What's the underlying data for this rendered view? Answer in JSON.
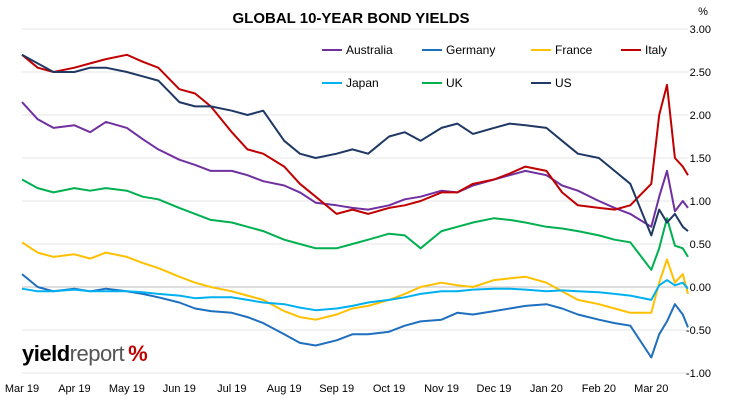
{
  "chart_data": {
    "type": "line",
    "title": "GLOBAL 10-YEAR BOND YIELDS",
    "ylabel": "%",
    "ylim": [
      -1.0,
      3.0
    ],
    "yticks": [
      "3.00",
      "2.50",
      "2.00",
      "1.50",
      "1.00",
      "0.50",
      "0.00",
      "-0.50",
      "-1.00"
    ],
    "xticks": [
      "Mar 19",
      "Apr 19",
      "May 19",
      "Jun 19",
      "Jul 19",
      "Aug 19",
      "Sep 19",
      "Oct 19",
      "Nov 19",
      "Dec 19",
      "Jan 20",
      "Feb 20",
      "Mar 20"
    ],
    "x_range": [
      0,
      12.7
    ],
    "grid": true,
    "legend": "top",
    "series": [
      {
        "name": "Australia",
        "color": "#7030a0",
        "x": [
          0,
          0.3,
          0.6,
          1,
          1.3,
          1.6,
          2,
          2.3,
          2.6,
          3,
          3.3,
          3.6,
          4,
          4.3,
          4.6,
          5,
          5.3,
          5.6,
          6,
          6.3,
          6.6,
          7,
          7.3,
          7.6,
          8,
          8.3,
          8.6,
          9,
          9.3,
          9.6,
          10,
          10.3,
          10.6,
          11,
          11.3,
          11.6,
          12,
          12.15,
          12.3,
          12.45,
          12.6,
          12.7
        ],
        "values": [
          2.15,
          1.95,
          1.85,
          1.88,
          1.8,
          1.92,
          1.85,
          1.72,
          1.6,
          1.48,
          1.42,
          1.35,
          1.35,
          1.3,
          1.23,
          1.18,
          1.1,
          0.98,
          0.95,
          0.92,
          0.9,
          0.95,
          1.02,
          1.05,
          1.12,
          1.1,
          1.18,
          1.25,
          1.3,
          1.35,
          1.3,
          1.18,
          1.12,
          1.0,
          0.92,
          0.85,
          0.7,
          1.05,
          1.35,
          0.88,
          1.0,
          0.92
        ]
      },
      {
        "name": "Germany",
        "color": "#1f6fbf",
        "x": [
          0,
          0.3,
          0.6,
          1,
          1.3,
          1.6,
          2,
          2.3,
          2.6,
          3,
          3.3,
          3.6,
          4,
          4.3,
          4.6,
          5,
          5.3,
          5.6,
          6,
          6.3,
          6.6,
          7,
          7.3,
          7.6,
          8,
          8.3,
          8.6,
          9,
          9.3,
          9.6,
          10,
          10.3,
          10.6,
          11,
          11.3,
          11.6,
          12,
          12.15,
          12.3,
          12.45,
          12.6,
          12.7
        ],
        "values": [
          0.15,
          0.0,
          -0.05,
          -0.02,
          -0.05,
          -0.02,
          -0.05,
          -0.08,
          -0.12,
          -0.18,
          -0.25,
          -0.28,
          -0.3,
          -0.35,
          -0.42,
          -0.55,
          -0.65,
          -0.68,
          -0.62,
          -0.55,
          -0.55,
          -0.52,
          -0.45,
          -0.4,
          -0.38,
          -0.3,
          -0.32,
          -0.28,
          -0.25,
          -0.22,
          -0.2,
          -0.25,
          -0.32,
          -0.38,
          -0.42,
          -0.45,
          -0.82,
          -0.55,
          -0.4,
          -0.2,
          -0.32,
          -0.47
        ]
      },
      {
        "name": "France",
        "color": "#ffc000",
        "x": [
          0,
          0.3,
          0.6,
          1,
          1.3,
          1.6,
          2,
          2.3,
          2.6,
          3,
          3.3,
          3.6,
          4,
          4.3,
          4.6,
          5,
          5.3,
          5.6,
          6,
          6.3,
          6.6,
          7,
          7.3,
          7.6,
          8,
          8.3,
          8.6,
          9,
          9.3,
          9.6,
          10,
          10.3,
          10.6,
          11,
          11.3,
          11.6,
          12,
          12.15,
          12.3,
          12.45,
          12.6,
          12.7
        ],
        "values": [
          0.52,
          0.4,
          0.35,
          0.38,
          0.33,
          0.4,
          0.35,
          0.28,
          0.22,
          0.12,
          0.05,
          0.0,
          -0.05,
          -0.1,
          -0.15,
          -0.28,
          -0.35,
          -0.38,
          -0.32,
          -0.25,
          -0.22,
          -0.15,
          -0.08,
          0.0,
          0.05,
          0.02,
          0.0,
          0.08,
          0.1,
          0.12,
          0.05,
          -0.05,
          -0.15,
          -0.2,
          -0.25,
          -0.3,
          -0.3,
          0.05,
          0.32,
          0.05,
          0.15,
          -0.08
        ]
      },
      {
        "name": "Italy",
        "color": "#c00000",
        "x": [
          0,
          0.3,
          0.6,
          1,
          1.3,
          1.6,
          2,
          2.3,
          2.6,
          3,
          3.3,
          3.6,
          4,
          4.3,
          4.6,
          5,
          5.3,
          5.6,
          6,
          6.3,
          6.6,
          7,
          7.3,
          7.6,
          8,
          8.3,
          8.6,
          9,
          9.3,
          9.6,
          10,
          10.3,
          10.6,
          11,
          11.3,
          11.6,
          12,
          12.15,
          12.3,
          12.45,
          12.6,
          12.7
        ],
        "values": [
          2.7,
          2.55,
          2.5,
          2.55,
          2.6,
          2.65,
          2.7,
          2.62,
          2.55,
          2.3,
          2.25,
          2.1,
          1.8,
          1.6,
          1.55,
          1.4,
          1.2,
          1.05,
          0.85,
          0.9,
          0.85,
          0.92,
          0.95,
          1.0,
          1.1,
          1.1,
          1.2,
          1.25,
          1.32,
          1.4,
          1.35,
          1.1,
          0.95,
          0.92,
          0.9,
          0.95,
          1.2,
          2.0,
          2.35,
          1.5,
          1.4,
          1.3
        ]
      },
      {
        "name": "Japan",
        "color": "#00b0f0",
        "x": [
          0,
          0.3,
          0.6,
          1,
          1.3,
          1.6,
          2,
          2.3,
          2.6,
          3,
          3.3,
          3.6,
          4,
          4.3,
          4.6,
          5,
          5.3,
          5.6,
          6,
          6.3,
          6.6,
          7,
          7.3,
          7.6,
          8,
          8.3,
          8.6,
          9,
          9.3,
          9.6,
          10,
          10.3,
          10.6,
          11,
          11.3,
          11.6,
          12,
          12.15,
          12.3,
          12.45,
          12.6,
          12.7
        ],
        "values": [
          -0.02,
          -0.05,
          -0.05,
          -0.03,
          -0.05,
          -0.05,
          -0.05,
          -0.06,
          -0.08,
          -0.1,
          -0.13,
          -0.12,
          -0.12,
          -0.15,
          -0.18,
          -0.2,
          -0.24,
          -0.27,
          -0.25,
          -0.22,
          -0.18,
          -0.15,
          -0.12,
          -0.08,
          -0.05,
          -0.05,
          -0.03,
          -0.02,
          -0.02,
          -0.03,
          -0.05,
          -0.04,
          -0.05,
          -0.06,
          -0.08,
          -0.1,
          -0.15,
          0.02,
          0.08,
          0.02,
          0.05,
          -0.02
        ]
      },
      {
        "name": "UK",
        "color": "#00b050",
        "x": [
          0,
          0.3,
          0.6,
          1,
          1.3,
          1.6,
          2,
          2.3,
          2.6,
          3,
          3.3,
          3.6,
          4,
          4.3,
          4.6,
          5,
          5.3,
          5.6,
          6,
          6.3,
          6.6,
          7,
          7.3,
          7.6,
          8,
          8.3,
          8.6,
          9,
          9.3,
          9.6,
          10,
          10.3,
          10.6,
          11,
          11.3,
          11.6,
          12,
          12.15,
          12.3,
          12.45,
          12.6,
          12.7
        ],
        "values": [
          1.25,
          1.15,
          1.1,
          1.15,
          1.12,
          1.15,
          1.12,
          1.05,
          1.02,
          0.92,
          0.85,
          0.78,
          0.75,
          0.7,
          0.65,
          0.55,
          0.5,
          0.45,
          0.45,
          0.5,
          0.55,
          0.62,
          0.6,
          0.45,
          0.65,
          0.7,
          0.75,
          0.8,
          0.78,
          0.75,
          0.7,
          0.68,
          0.65,
          0.6,
          0.55,
          0.52,
          0.2,
          0.45,
          0.8,
          0.48,
          0.45,
          0.35
        ]
      },
      {
        "name": "US",
        "color": "#1f3864",
        "x": [
          0,
          0.3,
          0.6,
          1,
          1.3,
          1.6,
          2,
          2.3,
          2.6,
          3,
          3.3,
          3.6,
          4,
          4.3,
          4.6,
          5,
          5.3,
          5.6,
          6,
          6.3,
          6.6,
          7,
          7.3,
          7.6,
          8,
          8.3,
          8.6,
          9,
          9.3,
          9.6,
          10,
          10.3,
          10.6,
          11,
          11.3,
          11.6,
          12,
          12.15,
          12.3,
          12.45,
          12.6,
          12.7
        ],
        "values": [
          2.7,
          2.6,
          2.5,
          2.5,
          2.55,
          2.55,
          2.5,
          2.45,
          2.4,
          2.15,
          2.1,
          2.1,
          2.05,
          2.0,
          2.05,
          1.7,
          1.55,
          1.5,
          1.55,
          1.6,
          1.55,
          1.75,
          1.8,
          1.7,
          1.85,
          1.9,
          1.78,
          1.85,
          1.9,
          1.88,
          1.85,
          1.7,
          1.55,
          1.5,
          1.35,
          1.2,
          0.6,
          0.9,
          0.75,
          0.85,
          0.7,
          0.65
        ]
      }
    ]
  },
  "branding": {
    "text_bold": "yield",
    "text_light": "report",
    "symbol": "%"
  }
}
